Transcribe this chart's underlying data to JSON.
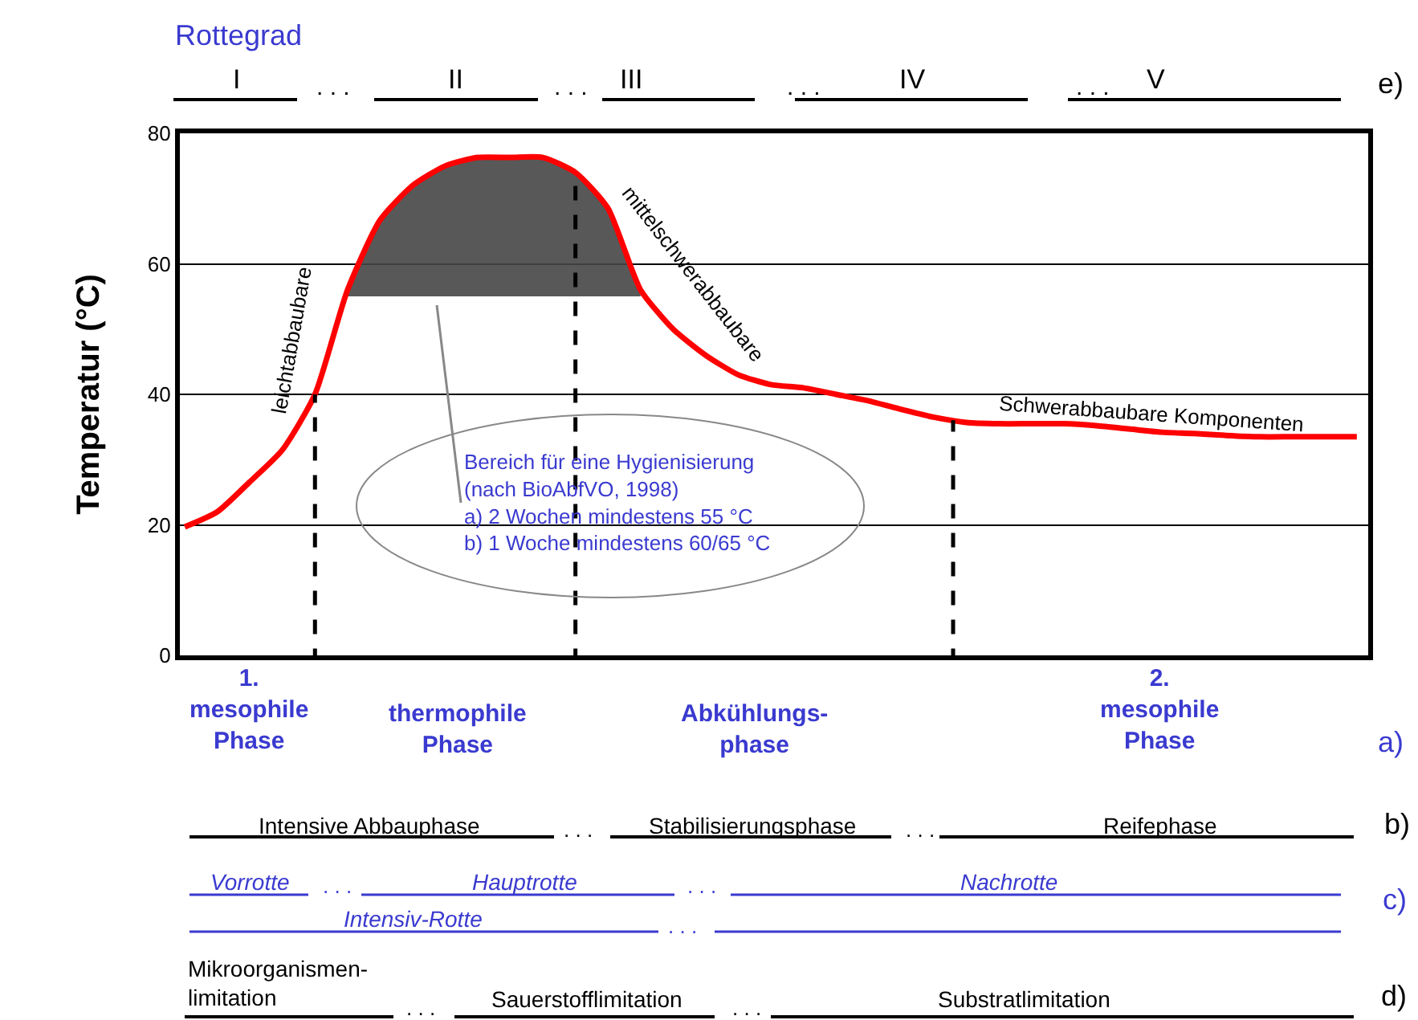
{
  "chart_data": {
    "type": "line",
    "ylabel": "Temperatur (°C)",
    "categories": [
      null,
      null,
      null,
      null,
      null,
      null,
      null,
      null,
      null,
      null,
      null,
      null,
      null,
      null,
      null,
      null,
      null,
      null,
      null,
      null,
      null,
      null,
      null,
      null,
      null,
      null,
      null,
      null,
      null,
      null,
      null,
      null,
      null,
      null,
      null,
      null,
      null
    ],
    "series": [
      {
        "color": "#ff0000",
        "values": [
          19.7,
          22,
          26.6,
          31.5,
          40,
          56,
          66.7,
          72,
          75,
          76.3,
          76.3,
          76.3,
          74,
          68.5,
          56,
          50,
          46,
          43,
          41.5,
          41,
          40,
          39,
          37.7,
          36.5,
          35.7,
          35.5,
          35.5,
          35.5,
          35.2,
          34.7,
          34.2,
          34,
          33.7,
          33.5,
          33.5,
          33.5,
          33.5
        ],
        "lower": [
          null,
          null,
          null,
          null,
          null,
          55,
          55,
          55,
          55,
          55,
          55,
          55,
          55,
          55,
          55,
          null,
          null,
          null,
          null,
          null,
          null,
          null,
          null,
          null,
          null,
          null,
          null,
          null,
          null,
          null,
          null,
          null,
          null,
          null,
          null,
          null,
          null
        ],
        "upper": [
          null,
          null,
          null,
          null,
          null,
          56,
          66.7,
          72,
          75,
          76.3,
          76.3,
          76.3,
          74,
          68.5,
          56,
          null,
          null,
          null,
          null,
          null,
          null,
          null,
          null,
          null,
          null,
          null,
          null,
          null,
          null,
          null,
          null,
          null,
          null,
          null,
          null,
          null,
          null
        ]
      }
    ],
    "ylim": [
      0,
      80
    ],
    "yticks": [
      0,
      20,
      40,
      60,
      80
    ],
    "grid": "y",
    "tick_labels": "y",
    "legend": false,
    "line_style": "solid",
    "marker": "none",
    "annotations": [
      "Rottegrad",
      "I",
      ". . .",
      "II",
      ". . .",
      "III",
      ". . .",
      "IV",
      ". . .",
      "V",
      "e)",
      "leichtabbaubare",
      "mittelschwerabbaubare",
      "Schwerabbaubare Komponenten",
      "Bereich für eine Hygienisierung\n(nach BioAbfVO, 1998)\na) 2 Wochen mindestens 55 °C\nb) 1 Woche mindestens 60/65 °C",
      "1.\nmesophile\nPhase",
      "thermophile\nPhase",
      "Abkühlungs-\nphase",
      "2.\nmesophile\nPhase",
      "a)",
      "Intensive Abbauphase",
      ". . .",
      "Stabilisierungsphase",
      ". . .",
      "Reifephase",
      "b)",
      "Vorrotte",
      ". . .",
      "Hauptrotte",
      ". . .",
      "Nachrotte",
      "c)",
      "Intensiv-Rotte",
      ". . .",
      "Mikroorganismen-\nlimitation",
      ". . .",
      "Sauerstofflimitation",
      ". . .",
      "Substratlimitation",
      "d)"
    ]
  }
}
